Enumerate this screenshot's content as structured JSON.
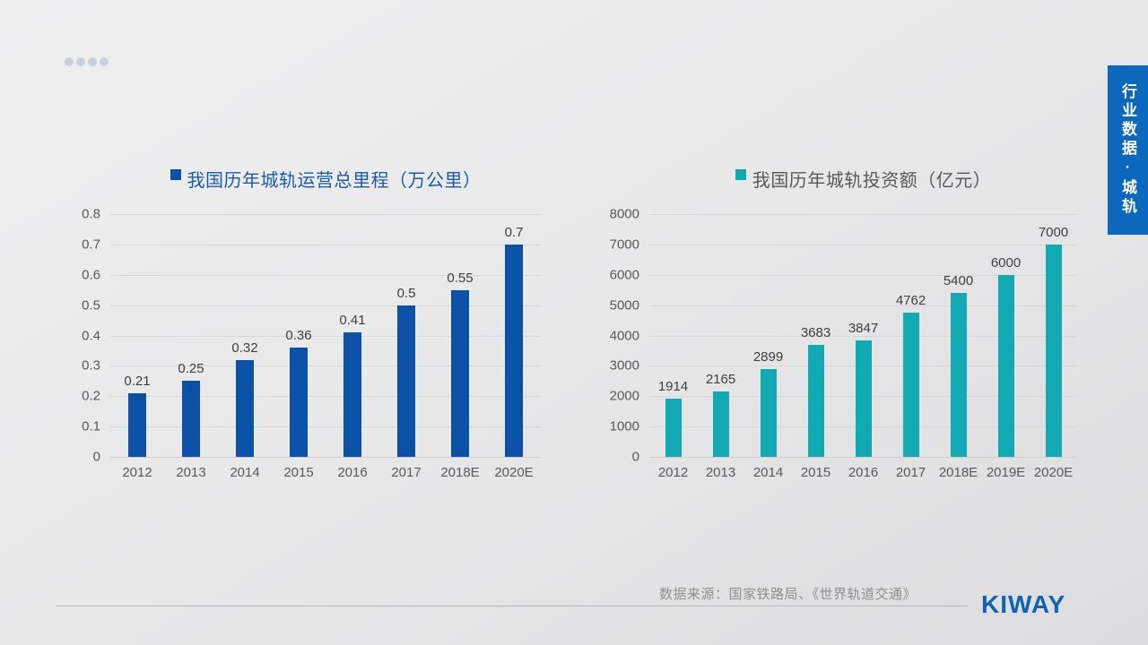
{
  "slide": {
    "decor": {
      "dots_count": 4,
      "dot_color": "#C7D1DE"
    },
    "side_tab": {
      "label": "行业数据·城轨",
      "bg_color": "#0C68BC",
      "text_color": "#FFFFFF"
    },
    "footer": {
      "source_text": "数据来源：国家铁路局、《世界轨道交通》",
      "logo_text": "KIWAY",
      "logo_color": "#1362B1"
    }
  },
  "chart_data": [
    {
      "type": "bar",
      "title": "我国历年城轨运营总里程（万公里）",
      "title_color": "#1A5CA8",
      "bar_color": "#0B51A8",
      "legend_position": "top",
      "grid": true,
      "xlabel": "",
      "ylabel": "",
      "categories": [
        "2012",
        "2013",
        "2014",
        "2015",
        "2016",
        "2017",
        "2018E",
        "2020E"
      ],
      "values": [
        0.21,
        0.25,
        0.32,
        0.36,
        0.41,
        0.5,
        0.55,
        0.7
      ],
      "value_labels": [
        "0.21",
        "0.25",
        "0.32",
        "0.36",
        "0.41",
        "0.5",
        "0.55",
        "0.7"
      ],
      "ylim": [
        0,
        0.8
      ],
      "yticks": [
        "0",
        "0.1",
        "0.2",
        "0.3",
        "0.4",
        "0.5",
        "0.6",
        "0.7",
        "0.8"
      ]
    },
    {
      "type": "bar",
      "title": "我国历年城轨投资额（亿元）",
      "title_color": "#595959",
      "bar_color": "#12A9B2",
      "legend_position": "top",
      "grid": true,
      "xlabel": "",
      "ylabel": "",
      "categories": [
        "2012",
        "2013",
        "2014",
        "2015",
        "2016",
        "2017",
        "2018E",
        "2019E",
        "2020E"
      ],
      "values": [
        1914,
        2165,
        2899,
        3683,
        3847,
        4762,
        5400,
        6000,
        7000
      ],
      "value_labels": [
        "1914",
        "2165",
        "2899",
        "3683",
        "3847",
        "4762",
        "5400",
        "6000",
        "7000"
      ],
      "ylim": [
        0,
        8000
      ],
      "yticks": [
        "0",
        "1000",
        "2000",
        "3000",
        "4000",
        "5000",
        "6000",
        "7000",
        "8000"
      ]
    }
  ]
}
